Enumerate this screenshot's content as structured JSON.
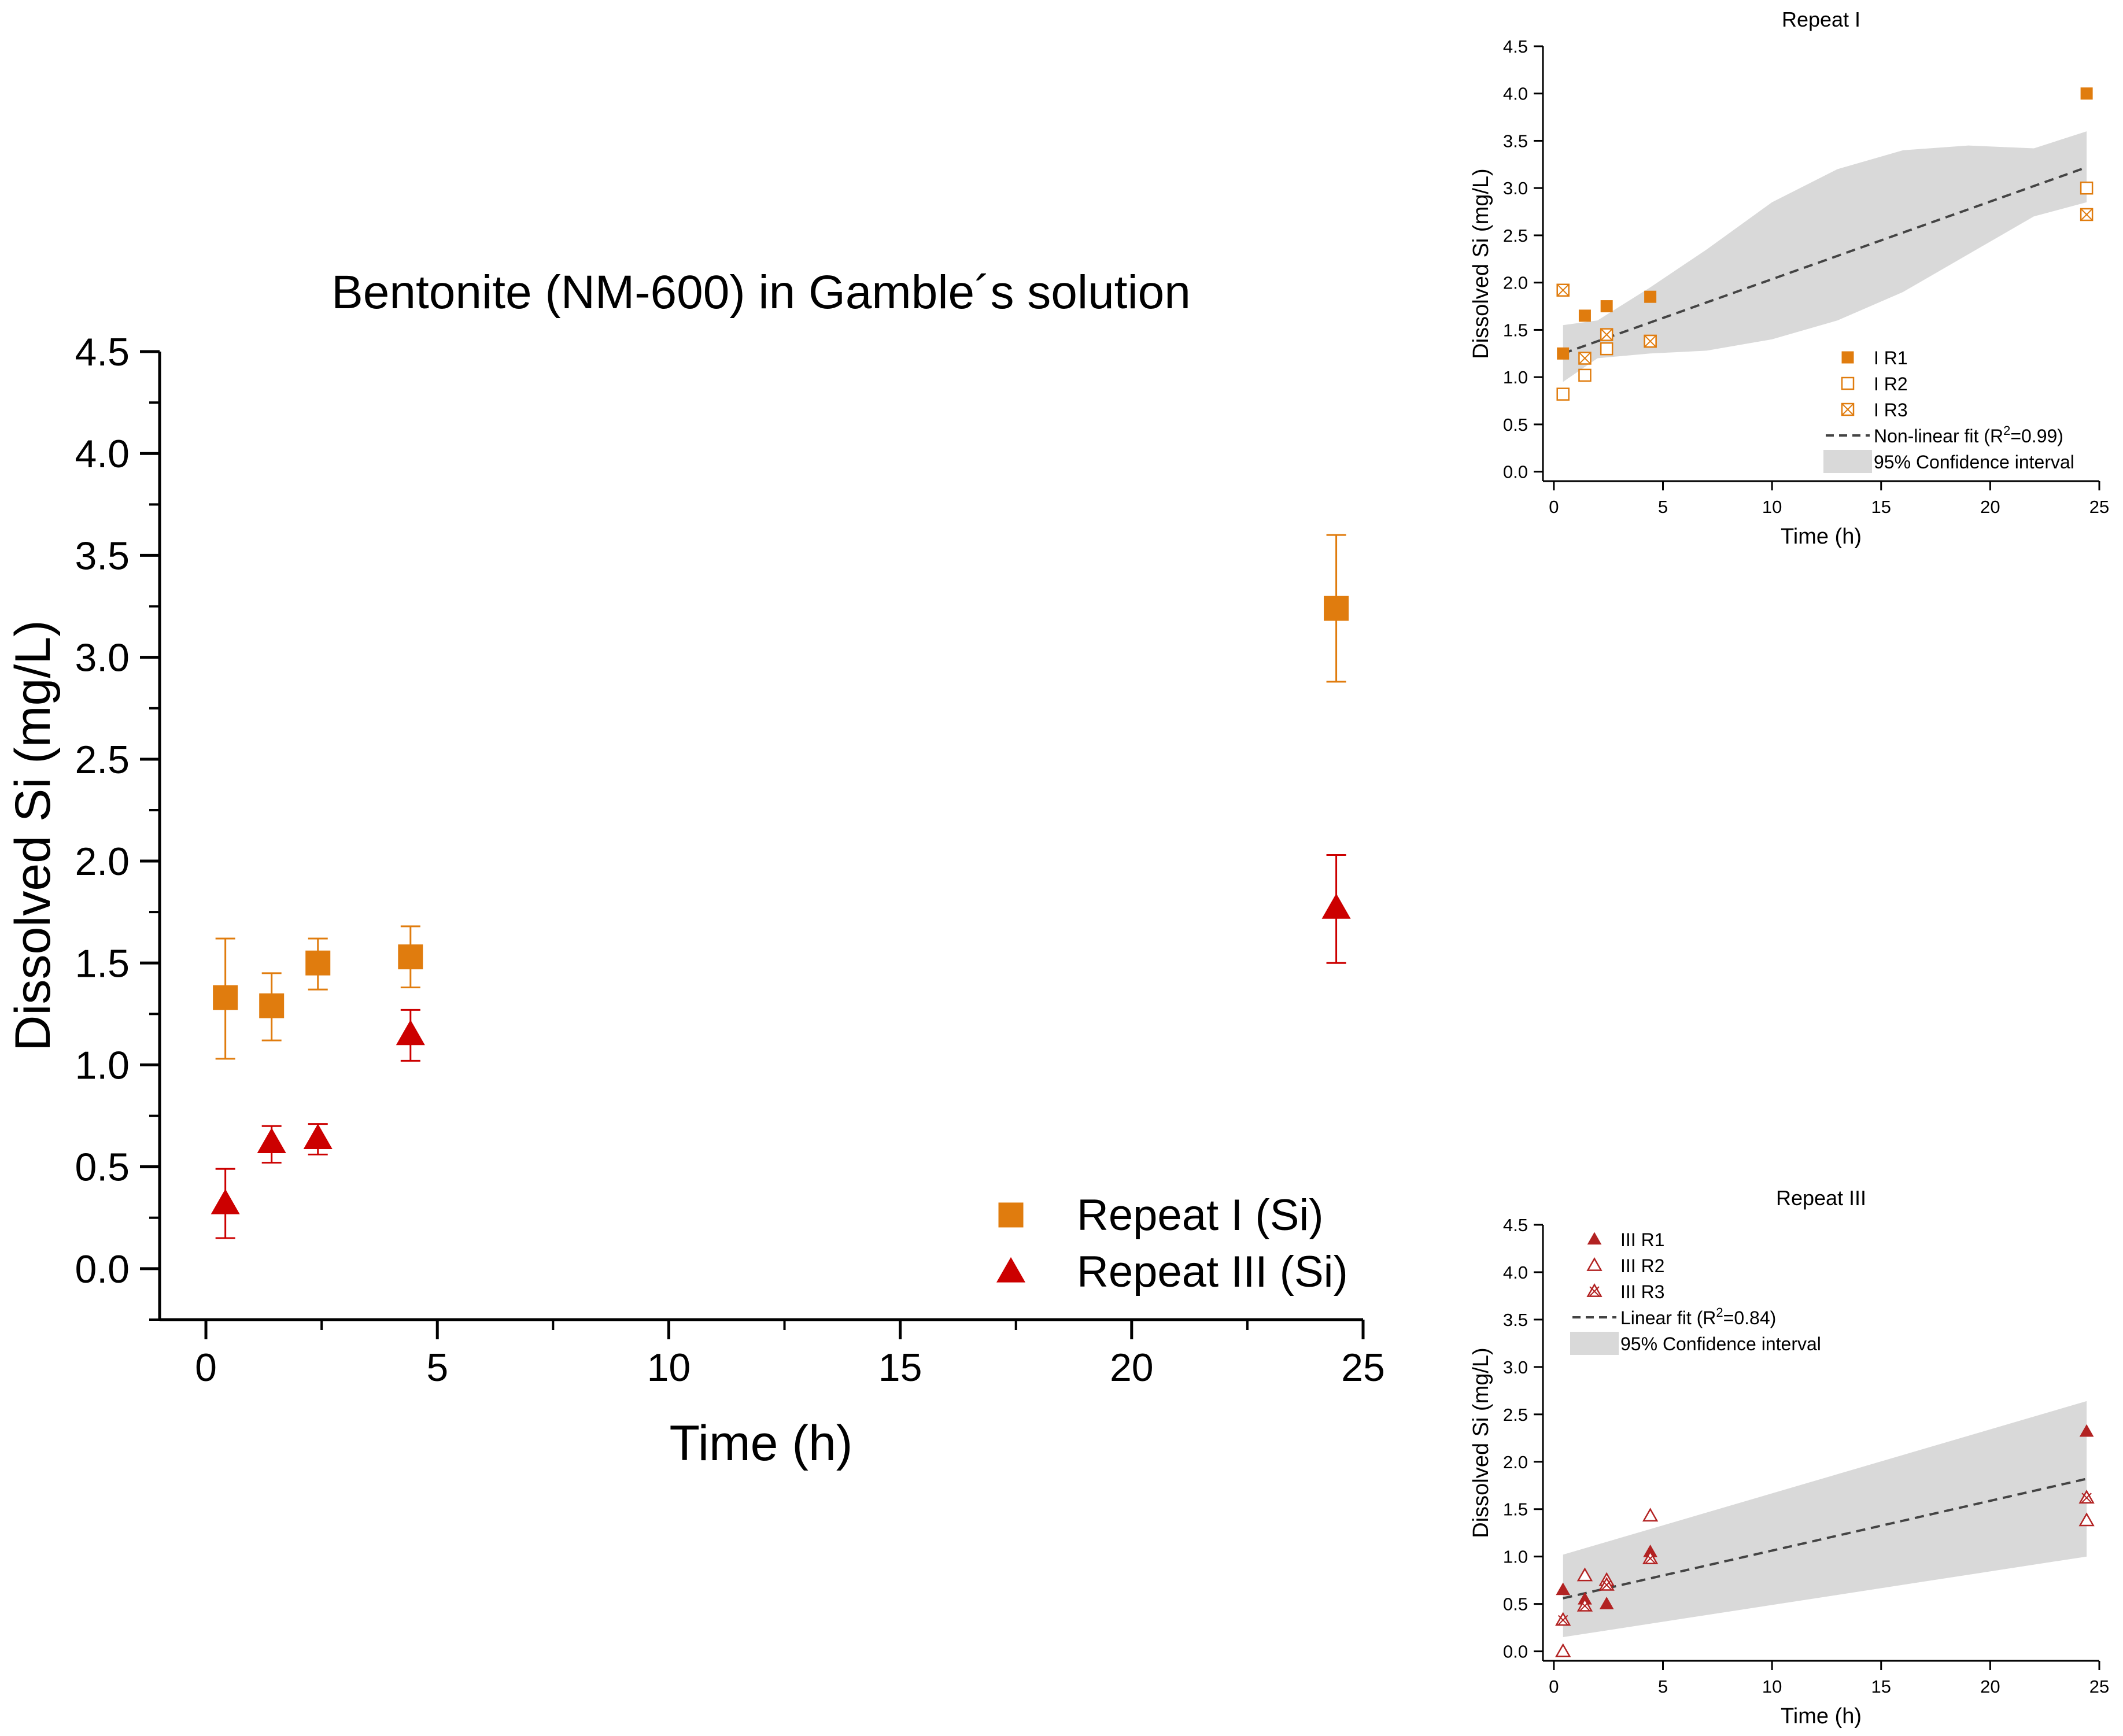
{
  "chart_data": [
    {
      "id": "main",
      "type": "scatter",
      "title": "Bentonite (NM-600) in Gamble´s solution",
      "xlabel": "Time (h)",
      "ylabel": "Dissolved Si (mg/L)",
      "xlim": [
        -1,
        25
      ],
      "ylim": [
        -0.25,
        4.5
      ],
      "xticks": [
        0,
        5,
        10,
        15,
        20,
        25
      ],
      "xtick_labels": [
        "0",
        "5",
        "10",
        "15",
        "20",
        "25"
      ],
      "yticks": [
        0,
        0.5,
        1,
        1.5,
        2,
        2.5,
        3,
        3.5,
        4,
        4.5
      ],
      "ytick_labels": [
        "0.0",
        "0.5",
        "1.0",
        "1.5",
        "2.0",
        "2.5",
        "3.0",
        "3.5",
        "4.0",
        "4.5"
      ],
      "legend_position": "bottom-right",
      "series": [
        {
          "name": "Repeat I (Si)",
          "marker": "square",
          "color": "#E07C0E",
          "x": [
            0.42,
            1.42,
            2.42,
            4.42,
            24.42
          ],
          "y": [
            1.33,
            1.29,
            1.5,
            1.53,
            3.24
          ],
          "err_low": [
            0.3,
            0.17,
            0.13,
            0.15,
            0.36
          ],
          "err_high": [
            0.29,
            0.16,
            0.12,
            0.15,
            0.36
          ]
        },
        {
          "name": "Repeat III (Si)",
          "marker": "triangle",
          "color": "#CC0000",
          "x": [
            0.42,
            1.42,
            2.42,
            4.42,
            24.42
          ],
          "y": [
            0.32,
            0.62,
            0.64,
            1.15,
            1.77
          ],
          "err_low": [
            0.17,
            0.1,
            0.08,
            0.13,
            0.27
          ],
          "err_high": [
            0.17,
            0.08,
            0.07,
            0.12,
            0.26
          ]
        }
      ]
    },
    {
      "id": "repeat-i",
      "type": "scatter",
      "title": "Repeat I",
      "xlabel": "Time (h)",
      "ylabel": "Dissolved Si (mg/L)",
      "xlim": [
        -0.5,
        25
      ],
      "ylim": [
        -0.1,
        4.5
      ],
      "xticks": [
        0,
        5,
        10,
        15,
        20,
        25
      ],
      "xtick_labels": [
        "0",
        "5",
        "10",
        "15",
        "20",
        "25"
      ],
      "yticks": [
        0,
        0.5,
        1,
        1.5,
        2,
        2.5,
        3,
        3.5,
        4,
        4.5
      ],
      "ytick_labels": [
        "0.0",
        "0.5",
        "1.0",
        "1.5",
        "2.0",
        "2.5",
        "3.0",
        "3.5",
        "4.0",
        "4.5"
      ],
      "legend_position": "bottom-right",
      "color": "#E07C0E",
      "series": [
        {
          "name": "I R1",
          "marker": "square-filled",
          "x": [
            0.42,
            1.42,
            2.42,
            4.42,
            24.42
          ],
          "y": [
            1.25,
            1.65,
            1.75,
            1.85,
            4.0
          ]
        },
        {
          "name": "I R2",
          "marker": "square-open",
          "x": [
            0.42,
            1.42,
            2.42,
            4.42,
            24.42
          ],
          "y": [
            0.82,
            1.02,
            1.3,
            1.38,
            3.0
          ]
        },
        {
          "name": "I R3",
          "marker": "square-x",
          "x": [
            0.42,
            1.42,
            2.42,
            4.42,
            24.42
          ],
          "y": [
            1.92,
            1.2,
            1.45,
            1.38,
            2.72
          ]
        }
      ],
      "fit": {
        "label_prefix": "Non-linear fit (R",
        "label_sup": "2",
        "label_suffix": "=0.99)",
        "x": [
          0.42,
          24.42
        ],
        "y": [
          1.25,
          3.22
        ]
      },
      "band": {
        "label": "95% Confidence interval",
        "x": [
          0.42,
          2,
          4.42,
          7,
          10,
          13,
          16,
          19,
          22,
          24.42
        ],
        "lower": [
          0.95,
          1.2,
          1.25,
          1.28,
          1.4,
          1.6,
          1.9,
          2.3,
          2.7,
          2.85
        ],
        "upper": [
          1.55,
          1.6,
          1.95,
          2.35,
          2.85,
          3.2,
          3.4,
          3.45,
          3.42,
          3.6
        ]
      }
    },
    {
      "id": "repeat-iii",
      "type": "scatter",
      "title": "Repeat III",
      "xlabel": "Time (h)",
      "ylabel": "Dissolved Si (mg/L)",
      "xlim": [
        -0.5,
        25
      ],
      "ylim": [
        -0.1,
        4.5
      ],
      "xticks": [
        0,
        5,
        10,
        15,
        20,
        25
      ],
      "xtick_labels": [
        "0",
        "5",
        "10",
        "15",
        "20",
        "25"
      ],
      "yticks": [
        0,
        0.5,
        1,
        1.5,
        2,
        2.5,
        3,
        3.5,
        4,
        4.5
      ],
      "ytick_labels": [
        "0.0",
        "0.5",
        "1.0",
        "1.5",
        "2.0",
        "2.5",
        "3.0",
        "3.5",
        "4.0",
        "4.5"
      ],
      "legend_position": "top-left",
      "color": "#B22222",
      "series": [
        {
          "name": "III R1",
          "marker": "triangle-filled",
          "x": [
            0.42,
            1.42,
            2.42,
            4.42,
            24.42
          ],
          "y": [
            0.65,
            0.55,
            0.5,
            1.05,
            2.32
          ]
        },
        {
          "name": "III R2",
          "marker": "triangle-open",
          "x": [
            0.42,
            1.42,
            2.42,
            4.42,
            24.42
          ],
          "y": [
            0.0,
            0.8,
            0.75,
            1.43,
            1.38
          ]
        },
        {
          "name": "III R3",
          "marker": "triangle-x",
          "x": [
            0.42,
            1.42,
            2.42,
            4.42,
            24.42
          ],
          "y": [
            0.33,
            0.48,
            0.7,
            0.98,
            1.62
          ]
        }
      ],
      "fit": {
        "label_prefix": "Linear fit (R",
        "label_sup": "2",
        "label_suffix": "=0.84)",
        "x": [
          0.42,
          24.42
        ],
        "y": [
          0.56,
          1.82
        ]
      },
      "band": {
        "label": "95% Confidence interval",
        "x": [
          0.42,
          24.42
        ],
        "lower": [
          0.15,
          1.0
        ],
        "upper": [
          1.02,
          2.64
        ]
      }
    }
  ]
}
